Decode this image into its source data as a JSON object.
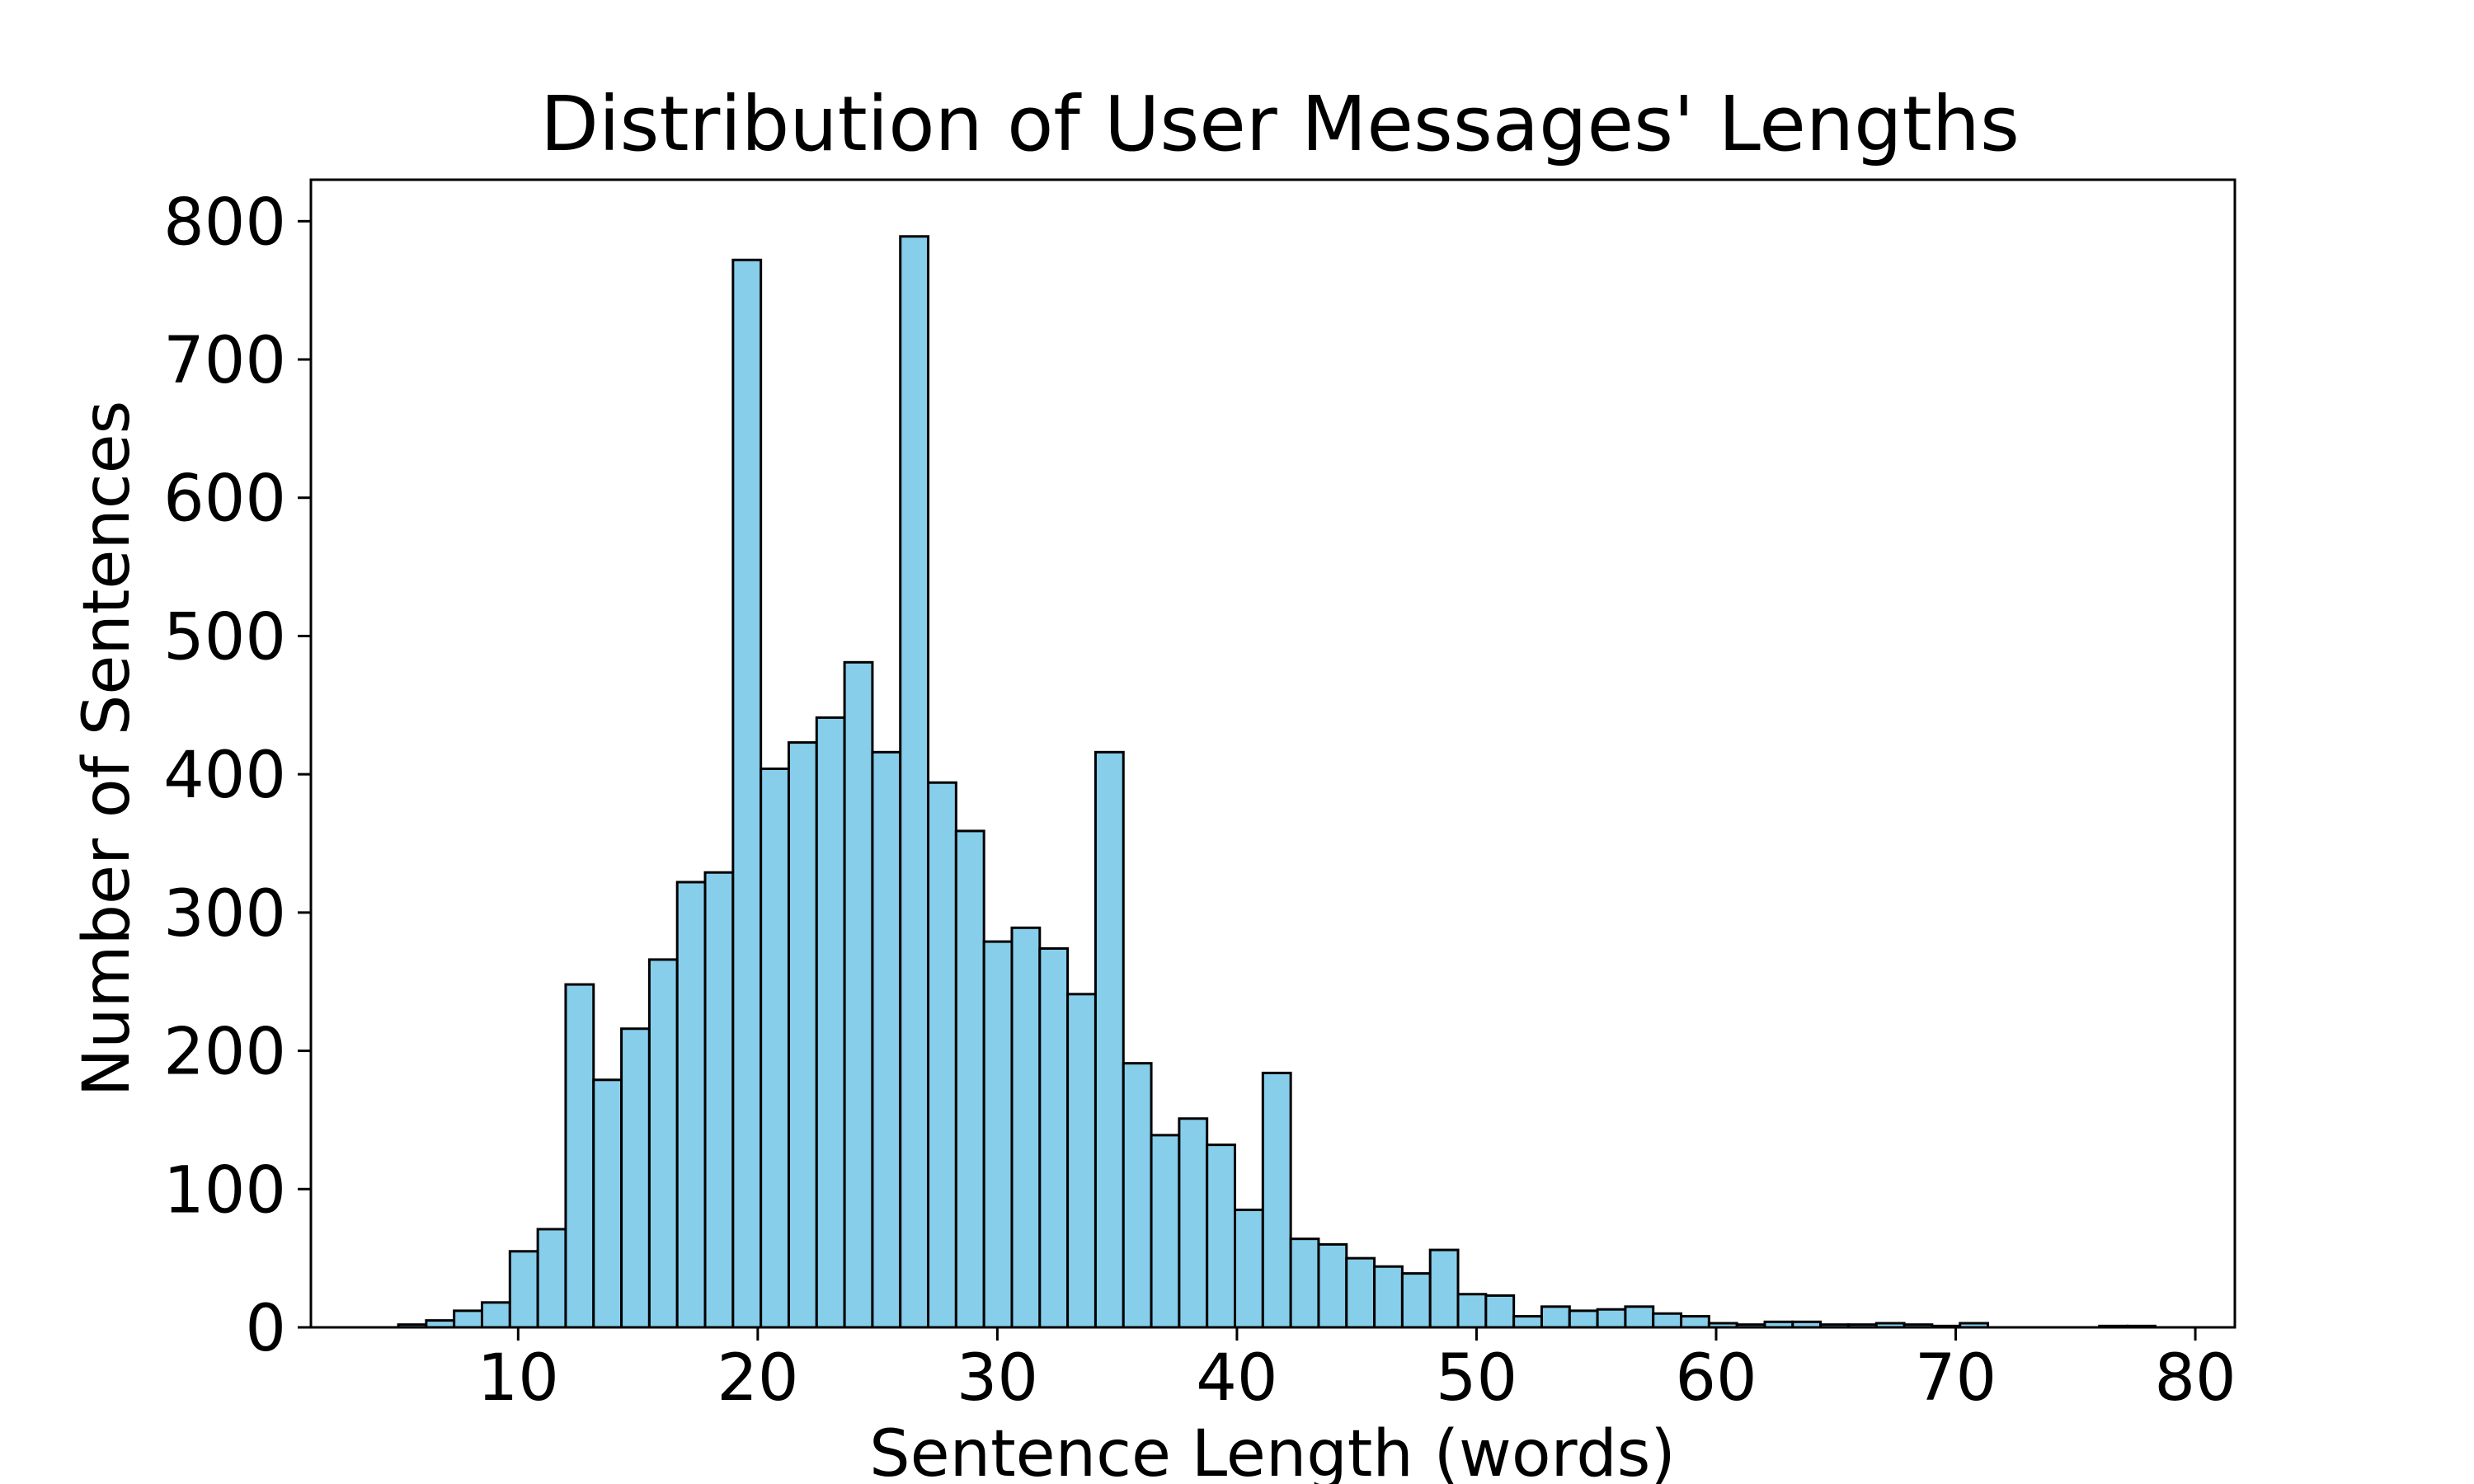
{
  "chart_data": {
    "type": "bar",
    "title": "Distribution of User Messages' Lengths",
    "xlabel": "Sentence Length (words)",
    "ylabel": "Number of Sentences",
    "xlim": [
      1.35,
      81.65
    ],
    "ylim": [
      0,
      830
    ],
    "xticks": [
      10,
      20,
      30,
      40,
      50,
      60,
      70,
      80
    ],
    "yticks": [
      0,
      100,
      200,
      300,
      400,
      500,
      600,
      700,
      800
    ],
    "bin_start": 5,
    "bin_width": 1.1639,
    "bar_color": "#87ceeb",
    "edge_color": "#000000",
    "values": [
      2,
      5,
      12,
      18,
      55,
      71,
      248,
      179,
      216,
      266,
      322,
      329,
      772,
      404,
      423,
      441,
      481,
      416,
      789,
      394,
      359,
      279,
      289,
      274,
      241,
      416,
      191,
      139,
      151,
      132,
      85,
      184,
      64,
      60,
      50,
      44,
      39,
      56,
      24,
      23,
      8,
      15,
      12,
      13,
      15,
      10,
      8,
      3,
      2,
      4,
      4,
      2,
      2,
      3,
      2,
      1,
      3,
      0,
      0,
      0,
      0,
      1,
      1
    ],
    "grid": false,
    "legend": "none"
  }
}
